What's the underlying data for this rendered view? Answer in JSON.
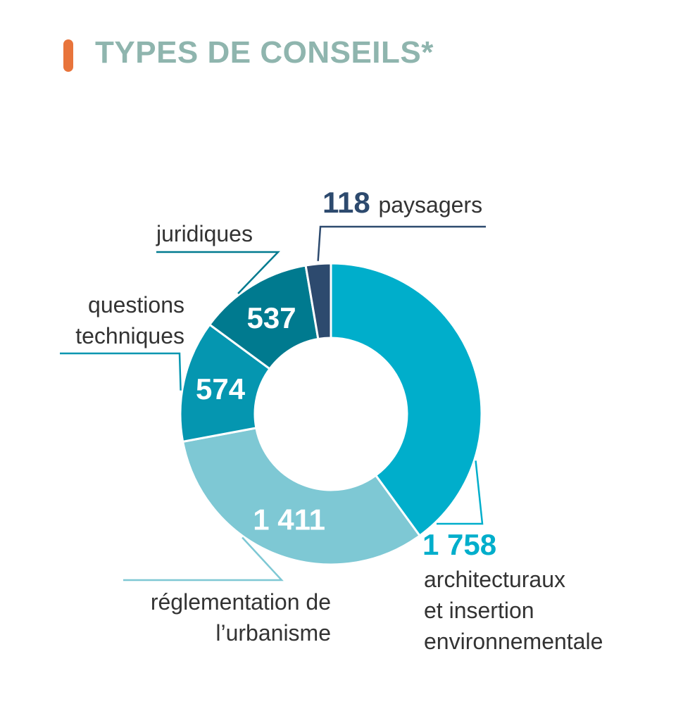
{
  "title": "TYPES DE CONSEILS*",
  "colors": {
    "accent_bar": "#e8743b",
    "title": "#8fb5ae",
    "text": "#333333"
  },
  "chart_data": {
    "type": "pie",
    "donut": true,
    "title": "TYPES DE CONSEILS*",
    "slices": [
      {
        "value": 1758,
        "value_label": "1 758",
        "label": "architecturaux et insertion environnementale",
        "label_lines": [
          "architecturaux",
          "et insertion",
          "environnementale"
        ],
        "color": "#00aecb"
      },
      {
        "value": 1411,
        "value_label": "1 411",
        "label": "réglementation de l’urbanisme",
        "label_lines": [
          "réglementation de",
          "l’urbanisme"
        ],
        "color": "#7ec8d4"
      },
      {
        "value": 574,
        "value_label": "574",
        "label": "questions techniques",
        "label_lines": [
          "questions",
          "techniques"
        ],
        "color": "#0596b0"
      },
      {
        "value": 537,
        "value_label": "537",
        "label": "juridiques",
        "label_lines": [
          "juridiques"
        ],
        "color": "#007a8f"
      },
      {
        "value": 118,
        "value_label": "118",
        "label": "paysagers",
        "label_lines": [
          "paysagers"
        ],
        "color": "#2d4a6e"
      }
    ]
  }
}
